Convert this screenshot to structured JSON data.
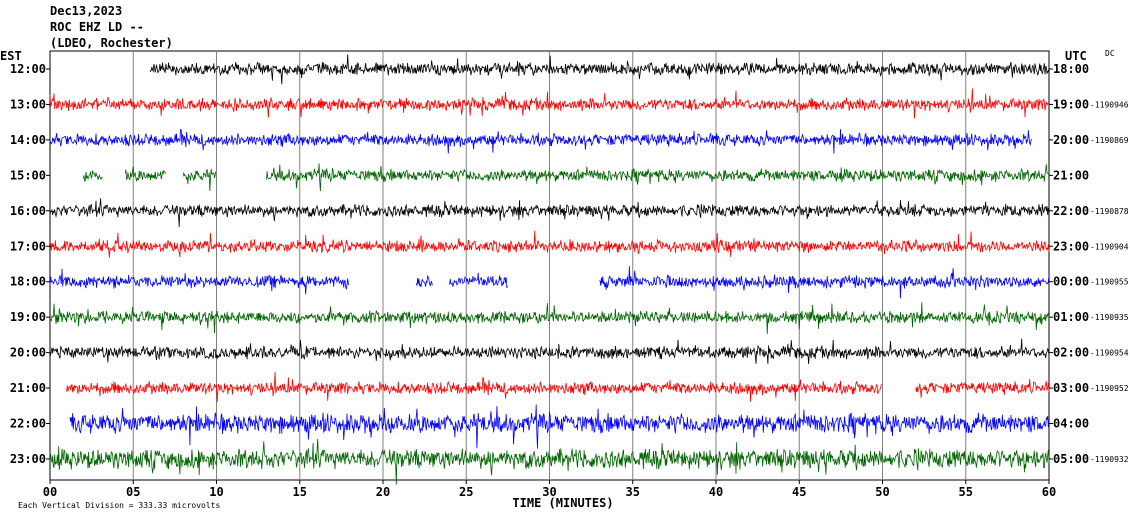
{
  "header": {
    "date": "Dec13,2023",
    "station": "ROC EHZ LD --",
    "network": "(LDEO, Rochester)"
  },
  "chart_data": {
    "type": "line",
    "title": "ROC EHZ LD --",
    "xlabel": "TIME (MINUTES)",
    "xlim": [
      0,
      60
    ],
    "x_ticks": [
      "00",
      "05",
      "10",
      "15",
      "20",
      "25",
      "30",
      "35",
      "40",
      "45",
      "50",
      "55",
      "60"
    ],
    "left_axis_title": "EST",
    "right_axis_title": "UTC",
    "dc_label": "DC",
    "rows": [
      {
        "est": "12:00",
        "utc": "18:00",
        "dc": "",
        "color": "#000000"
      },
      {
        "est": "13:00",
        "utc": "19:00",
        "dc": "-1190946",
        "color": "#ff0000"
      },
      {
        "est": "14:00",
        "utc": "20:00",
        "dc": "-1190869",
        "color": "#0000ff"
      },
      {
        "est": "15:00",
        "utc": "21:00",
        "dc": "",
        "color": "#006400"
      },
      {
        "est": "16:00",
        "utc": "22:00",
        "dc": "-1190878",
        "color": "#000000"
      },
      {
        "est": "17:00",
        "utc": "23:00",
        "dc": "-1190904",
        "color": "#ff0000"
      },
      {
        "est": "18:00",
        "utc": "00:00",
        "dc": "-1190955",
        "color": "#0000ff"
      },
      {
        "est": "19:00",
        "utc": "01:00",
        "dc": "-1190935",
        "color": "#006400"
      },
      {
        "est": "20:00",
        "utc": "02:00",
        "dc": "-1190954",
        "color": "#000000"
      },
      {
        "est": "21:00",
        "utc": "03:00",
        "dc": "-1190952",
        "color": "#ff0000"
      },
      {
        "est": "22:00",
        "utc": "04:00",
        "dc": "",
        "color": "#0000ff"
      },
      {
        "est": "23:00",
        "utc": "05:00",
        "dc": "-1190932",
        "color": "#006400"
      }
    ],
    "scale_note": "Each Vertical Division = 333.33 microvolts",
    "grid": true
  }
}
